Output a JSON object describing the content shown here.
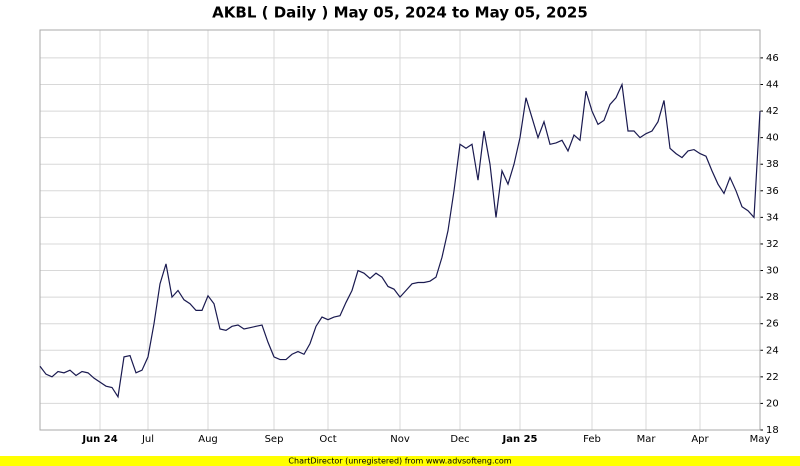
{
  "chart_data": {
    "type": "line",
    "title": "AKBL ( Daily ) May 05, 2024 to May 05, 2025",
    "footer": "ChartDirector (unregistered) from www.advsofteng.com",
    "categories": [
      null,
      null,
      null,
      null,
      null,
      null,
      null,
      null,
      null,
      null,
      "Jun 24",
      null,
      null,
      null,
      null,
      null,
      null,
      null,
      "Jul",
      null,
      null,
      null,
      null,
      null,
      null,
      null,
      null,
      null,
      "Aug",
      null,
      null,
      null,
      null,
      null,
      null,
      null,
      null,
      null,
      null,
      "Sep",
      null,
      null,
      null,
      null,
      null,
      null,
      null,
      null,
      "Oct",
      null,
      null,
      null,
      null,
      null,
      null,
      null,
      null,
      null,
      null,
      null,
      "Nov",
      null,
      null,
      null,
      null,
      null,
      null,
      null,
      null,
      null,
      "Dec",
      null,
      null,
      null,
      null,
      null,
      null,
      null,
      null,
      null,
      "Jan 25",
      null,
      null,
      null,
      null,
      null,
      null,
      null,
      null,
      null,
      null,
      null,
      "Feb",
      null,
      null,
      null,
      null,
      null,
      null,
      null,
      null,
      "Mar",
      null,
      null,
      null,
      null,
      null,
      null,
      null,
      null,
      "Apr",
      null,
      null,
      null,
      null,
      null,
      null,
      null,
      null,
      null,
      "May"
    ],
    "series": [
      {
        "color": "#1a1a50",
        "values": [
          22.8,
          22.2,
          22.0,
          22.4,
          22.3,
          22.5,
          22.1,
          22.4,
          22.3,
          21.9,
          21.6,
          21.3,
          21.2,
          20.5,
          23.5,
          23.6,
          22.3,
          22.5,
          23.5,
          26.0,
          29.0,
          30.5,
          28.0,
          28.5,
          27.8,
          27.5,
          27.0,
          27.0,
          28.1,
          27.5,
          25.6,
          25.5,
          25.8,
          25.9,
          25.6,
          25.7,
          25.8,
          25.9,
          24.6,
          23.5,
          23.3,
          23.3,
          23.7,
          23.9,
          23.7,
          24.5,
          25.8,
          26.5,
          26.3,
          26.5,
          26.6,
          27.6,
          28.5,
          30.0,
          29.8,
          29.4,
          29.8,
          29.5,
          28.8,
          28.6,
          28.0,
          28.5,
          29.0,
          29.1,
          29.1,
          29.2,
          29.5,
          31.0,
          33.0,
          36.0,
          39.5,
          39.2,
          39.5,
          36.8,
          40.5,
          38.0,
          34.0,
          37.5,
          36.5,
          38.0,
          40.0,
          43.0,
          41.5,
          40.0,
          41.2,
          39.5,
          39.6,
          39.8,
          39.0,
          40.2,
          39.8,
          43.5,
          42.0,
          41.0,
          41.3,
          42.5,
          43.0,
          44.0,
          40.5,
          40.5,
          40.0,
          40.3,
          40.5,
          41.2,
          42.8,
          39.2,
          38.8,
          38.5,
          39.0,
          39.1,
          38.8,
          38.6,
          37.5,
          36.5,
          35.8,
          37.0,
          36.0,
          34.8,
          34.5,
          34.0,
          42.0
        ]
      }
    ],
    "ylim": [
      18,
      48.1
    ],
    "yticks": [
      18,
      20,
      22,
      24,
      26,
      28,
      30,
      32,
      34,
      36,
      38,
      40,
      42,
      44,
      46
    ],
    "grid": true
  }
}
